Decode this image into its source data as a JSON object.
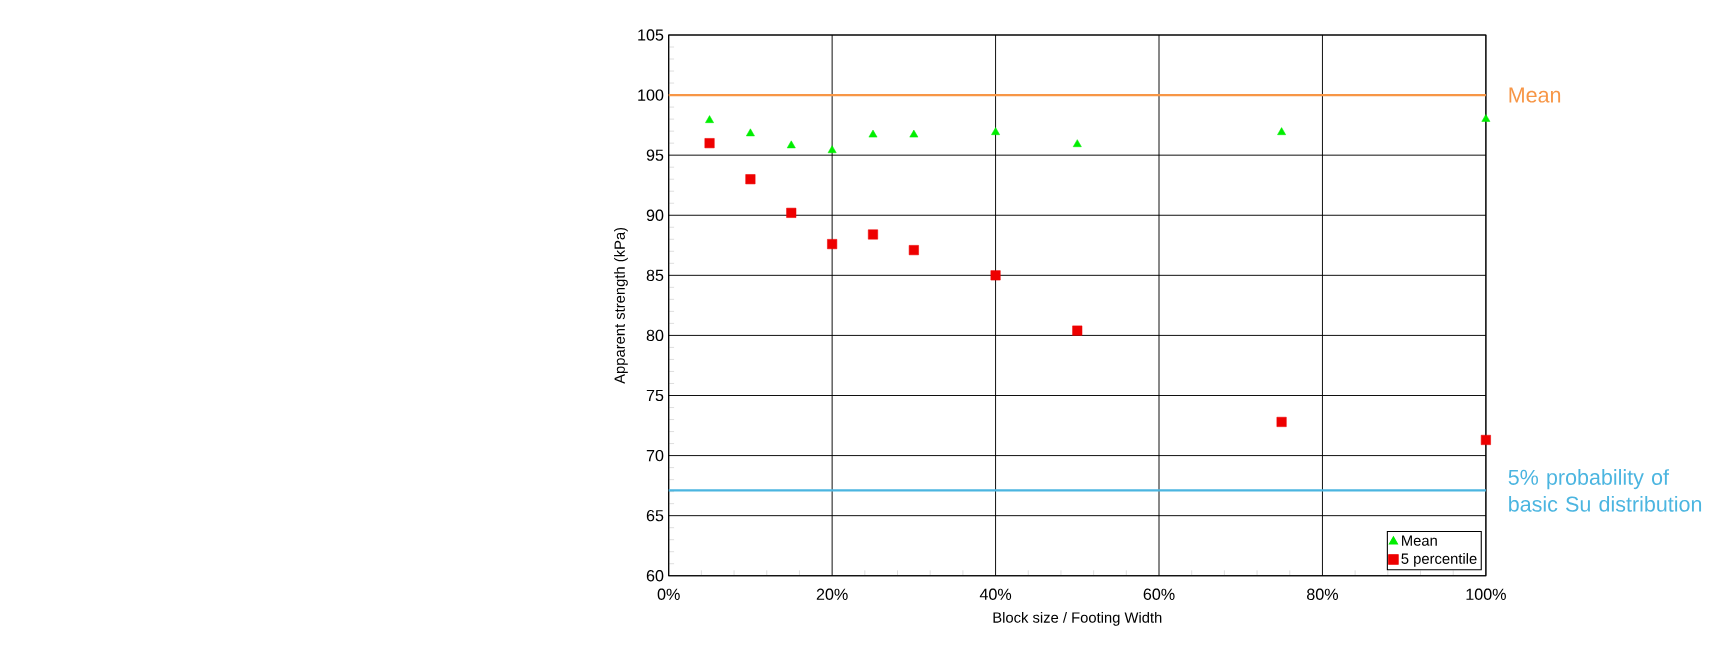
{
  "chart_data": {
    "type": "scatter",
    "xlabel": "Block size / Footing Width",
    "ylabel": "Apparent strength (kPa)",
    "xlim": [
      0,
      100
    ],
    "ylim": [
      60,
      105
    ],
    "xticks": [
      {
        "value": 0,
        "label": "0%"
      },
      {
        "value": 20,
        "label": "20%"
      },
      {
        "value": 40,
        "label": "40%"
      },
      {
        "value": 60,
        "label": "60%"
      },
      {
        "value": 80,
        "label": "80%"
      },
      {
        "value": 100,
        "label": "100%"
      }
    ],
    "yticks": [
      60,
      65,
      70,
      75,
      80,
      85,
      90,
      95,
      100,
      105
    ],
    "x": [
      5,
      10,
      15,
      20,
      25,
      30,
      40,
      50,
      75,
      100
    ],
    "series": [
      {
        "name": "Mean",
        "color": "#00ee00",
        "marker": "triangle",
        "values": [
          97.9,
          96.8,
          95.8,
          95.4,
          96.7,
          96.7,
          96.9,
          95.9,
          96.9,
          98.0
        ]
      },
      {
        "name": "5 percentile",
        "color": "#ee0000",
        "marker": "square",
        "values": [
          96.0,
          93.0,
          90.2,
          87.6,
          88.4,
          87.1,
          85.0,
          80.4,
          72.8,
          71.3
        ]
      }
    ],
    "ref_lines": [
      {
        "axis": "y",
        "value": 100,
        "label": "Mean",
        "color": "#f79646"
      },
      {
        "axis": "y",
        "value": 67.1,
        "label": "5% probability of basic Su distribution",
        "color": "#4bb5e0"
      }
    ],
    "grid": true,
    "legend": "bottom right"
  }
}
